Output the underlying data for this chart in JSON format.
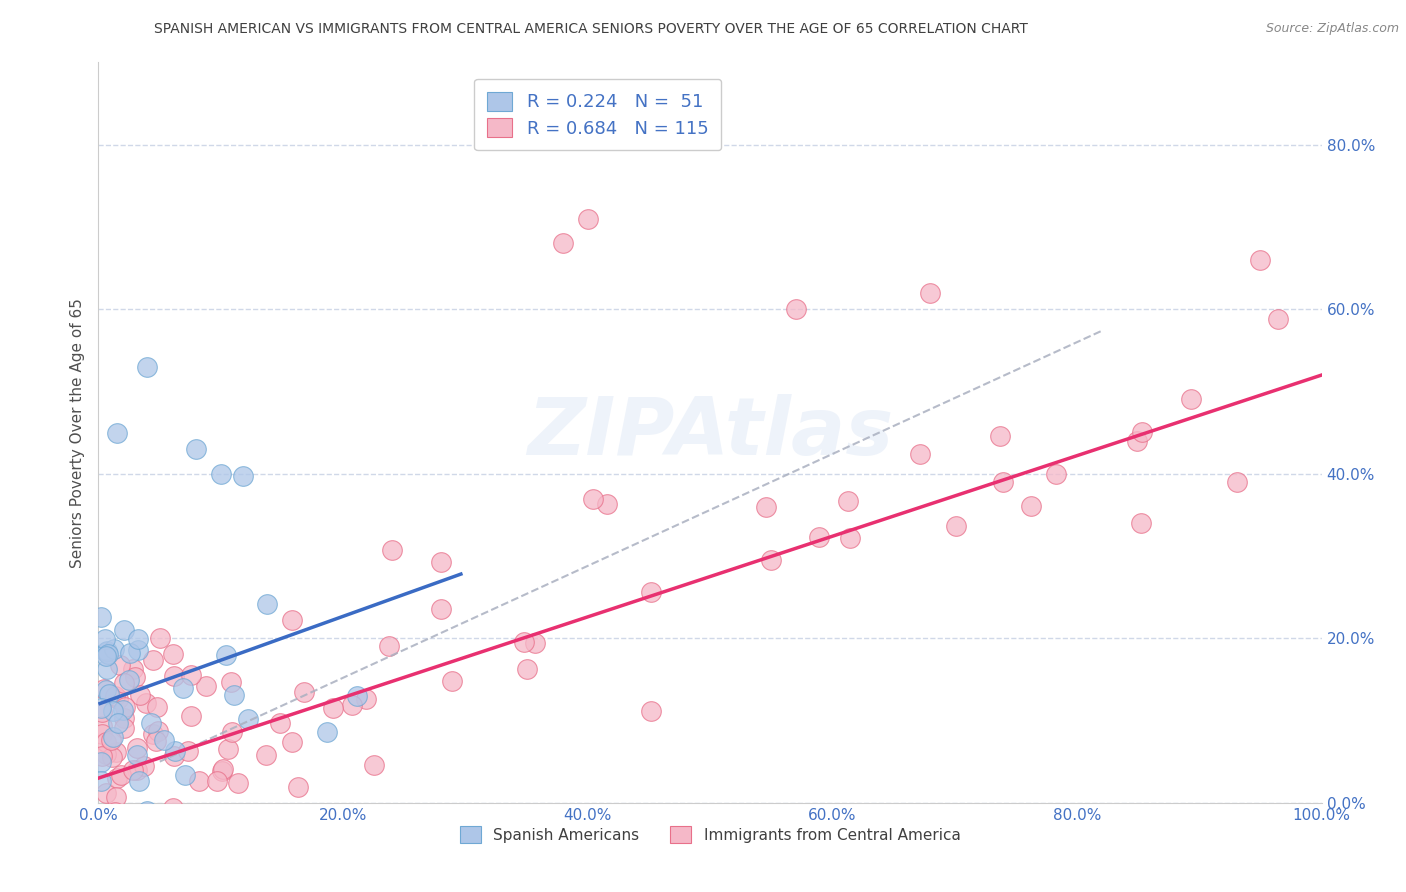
{
  "title": "SPANISH AMERICAN VS IMMIGRANTS FROM CENTRAL AMERICA SENIORS POVERTY OVER THE AGE OF 65 CORRELATION CHART",
  "source": "Source: ZipAtlas.com",
  "ylabel": "Seniors Poverty Over the Age of 65",
  "blue_R": 0.224,
  "blue_N": 51,
  "pink_R": 0.684,
  "pink_N": 115,
  "blue_color": "#aec6e8",
  "pink_color": "#f5b8c8",
  "blue_edge_color": "#6fa8d4",
  "pink_edge_color": "#e8708a",
  "blue_line_color": "#3a6bc4",
  "pink_line_color": "#e83070",
  "gray_dash_color": "#aab0c0",
  "axis_label_color": "#4472c4",
  "title_color": "#404040",
  "background_color": "#ffffff",
  "grid_color": "#d0d8e8",
  "blue_line_x0": 0,
  "blue_line_y0": 12,
  "blue_line_x1": 30,
  "blue_line_y1": 28,
  "pink_line_x0": 0,
  "pink_line_y0": 3,
  "pink_line_x1": 100,
  "pink_line_y1": 52,
  "gray_line_x0": 5,
  "gray_line_y0": 5,
  "gray_line_x1": 80,
  "gray_line_y1": 56,
  "xlim": [
    0,
    100
  ],
  "ylim": [
    0,
    90
  ],
  "yticks": [
    0,
    20,
    40,
    60,
    80
  ],
  "ytick_labels": [
    "0.0%",
    "20.0%",
    "40.0%",
    "60.0%",
    "80.0%"
  ],
  "xticks": [
    0,
    20,
    40,
    60,
    80,
    100
  ],
  "xtick_labels": [
    "0.0%",
    "20.0%",
    "40.0%",
    "60.0%",
    "80.0%",
    "100.0%"
  ],
  "legend1_label1": "R = 0.224   N =  51",
  "legend1_label2": "R = 0.684   N = 115",
  "legend2_label1": "Spanish Americans",
  "legend2_label2": "Immigrants from Central America",
  "watermark_text": "ZIPAtlas",
  "source_text": "Source: ZipAtlas.com"
}
